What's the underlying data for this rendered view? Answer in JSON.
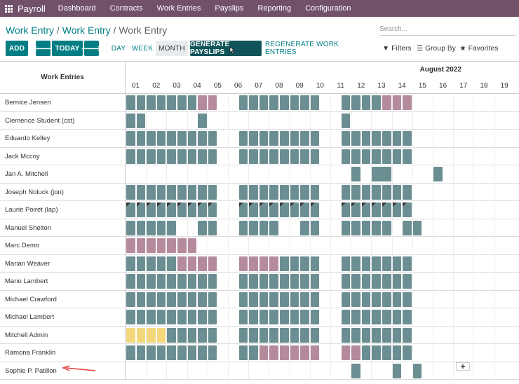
{
  "navbar": {
    "brand": "Payroll",
    "items": [
      "Dashboard",
      "Contracts",
      "Work Entries",
      "Payslips",
      "Reporting",
      "Configuration"
    ]
  },
  "breadcrumb": {
    "part1": "Work Entry",
    "part2": "Work Entry",
    "current": "Work Entry"
  },
  "search": {
    "placeholder": "Search..."
  },
  "toolbar": {
    "add": "ADD",
    "today": "TODAY",
    "day": "DAY",
    "week": "WEEK",
    "month": "MONTH",
    "generate": "GENERATE PAYSLIPS",
    "regenerate": "REGENERATE WORK ENTRIES",
    "filters": "Filters",
    "group_by": "Group By",
    "favorites": "Favorites"
  },
  "gantt": {
    "left_header": "Work Entries",
    "month": "August 2022",
    "days": [
      "01",
      "02",
      "03",
      "04",
      "05",
      "06",
      "07",
      "08",
      "09",
      "10",
      "11",
      "12",
      "13",
      "14",
      "15",
      "16",
      "17",
      "18",
      "19"
    ],
    "rows": [
      {
        "name": "Bernice Jensen",
        "cells": "TTTTTTTPP..TTTTTTTT..TTTTPPP"
      },
      {
        "name": "Clemence Student (cst)",
        "cells": "TT.....T.............T"
      },
      {
        "name": "Eduardo Kelley",
        "cells": "TTTTTTTTT..TTTTTTTT..TTTTTTT"
      },
      {
        "name": "Jack Mccoy",
        "cells": "TTTTTTTTT..TTTTTTTT..TTTTTTT"
      },
      {
        "name": "Jan A. Mitchell",
        "cells": "......................T.W.....T"
      },
      {
        "name": "Joseph Noluck (jon)",
        "cells": "TTTTTTTTT..TTTTTTTT..TTTTTTT"
      },
      {
        "name": "Laurie Poiret (lap)",
        "cells": "HHHHHHHHH..HHHHHHHH..HHHHHHH"
      },
      {
        "name": "Manuel Shelton",
        "cells": "TTTTT..TT..TTTT..TT..TTTTT.TT"
      },
      {
        "name": "Marc Demo",
        "cells": "PPPPPPP....................."
      },
      {
        "name": "Marian Weaver",
        "cells": "TTTTTPPPP..PPPPTTTT..TTTTTTT"
      },
      {
        "name": "Mario Lambert",
        "cells": "TTTTTTTTT..TTTTTTTT..TTTTTTT"
      },
      {
        "name": "Michael Crawford",
        "cells": "TTTTTTTTT..TTTTTTTT..TTTTTTT"
      },
      {
        "name": "Michael Lambert",
        "cells": "TTTTTTTTT..TTTTTTTT..TTTTTTT"
      },
      {
        "name": "Mitchell Admin",
        "cells": "YYYYTTTTT..TTTTTTTT..TTTTTTT"
      },
      {
        "name": "Ramona Franklin",
        "cells": "TTTTTTTTT..TTPPPPPP..PPTTTTT"
      },
      {
        "name": "Sophie P. Patillon",
        "cells": "......................T...T.T"
      }
    ]
  },
  "colors": {
    "navbar": "#71506a",
    "primary": "#017e84",
    "teal": "#6b8e92",
    "pink": "#b58a9d",
    "yellow": "#f2d77b"
  },
  "icons": [
    "apps-grid-icon",
    "arrow-left-icon",
    "arrow-right-icon",
    "filter-icon",
    "layers-icon",
    "star-icon",
    "plus-icon"
  ]
}
